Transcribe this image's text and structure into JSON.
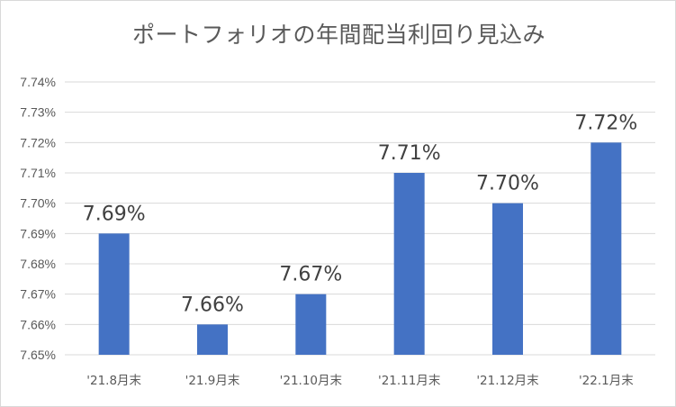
{
  "chart_data": {
    "type": "bar",
    "title": "ポートフォリオの年間配当利回り見込み",
    "categories": [
      "'21.8月末",
      "'21.9月末",
      "'21.10月末",
      "'21.11月末",
      "'21.12月末",
      "'22.1月末"
    ],
    "values": [
      7.69,
      7.66,
      7.67,
      7.71,
      7.7,
      7.72
    ],
    "data_labels": [
      "7.69%",
      "7.66%",
      "7.67%",
      "7.71%",
      "7.70%",
      "7.72%"
    ],
    "y_ticks": [
      "7.65%",
      "7.66%",
      "7.67%",
      "7.68%",
      "7.69%",
      "7.70%",
      "7.71%",
      "7.72%",
      "7.73%",
      "7.74%"
    ],
    "ylim": [
      7.65,
      7.74
    ],
    "grid": true,
    "legend": "none",
    "bar_color": "#4472c4",
    "grid_color": "#d9d9d9"
  }
}
